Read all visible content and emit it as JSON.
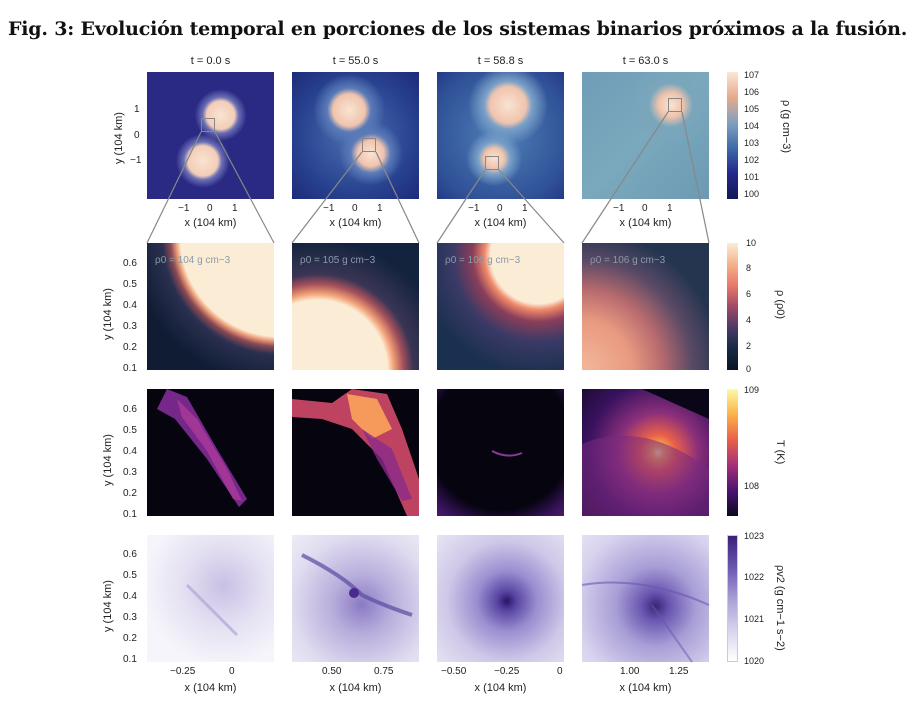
{
  "title": "Fig. 3: Evolución temporal en porciones de los sistemas binarios próximos a la fusión.",
  "columns": [
    {
      "time": "t = 0.0 s",
      "rho0": "ρ0 = 104 g cm−3"
    },
    {
      "time": "t = 55.0 s",
      "rho0": "ρ0 = 105 g cm−3"
    },
    {
      "time": "t = 58.8 s",
      "rho0": "ρ0 = 106 g cm−3"
    },
    {
      "time": "t = 63.0 s",
      "rho0": "ρ0 = 106 g cm−3"
    }
  ],
  "row1": {
    "ylabel": "y (104 km)",
    "xlabel": "x (104 km)",
    "yticks": [
      "1",
      "0",
      "−1"
    ],
    "xticks": [
      "−1",
      "0",
      "1"
    ],
    "colorbar": {
      "label": "ρ (g cm−3)",
      "ticks": [
        "107",
        "106",
        "105",
        "104",
        "103",
        "102",
        "101",
        "100"
      ]
    }
  },
  "row2": {
    "ylabel": "y (104 km)",
    "yticks": [
      "0.6",
      "0.5",
      "0.4",
      "0.3",
      "0.2",
      "0.1"
    ],
    "colorbar": {
      "label": "ρ (ρ0)",
      "ticks": [
        "10",
        "8",
        "6",
        "4",
        "2",
        "0"
      ]
    }
  },
  "row3": {
    "ylabel": "y (104 km)",
    "yticks": [
      "0.6",
      "0.5",
      "0.4",
      "0.3",
      "0.2",
      "0.1"
    ],
    "colorbar": {
      "label": "T (K)",
      "ticks": [
        "109",
        "108"
      ]
    }
  },
  "row4": {
    "ylabel": "y (104 km)",
    "yticks": [
      "0.6",
      "0.5",
      "0.4",
      "0.3",
      "0.2",
      "0.1"
    ],
    "xlabel": "x (104 km)",
    "xticks": [
      [
        "−0.25",
        "0"
      ],
      [
        "0.50",
        "0.75"
      ],
      [
        "−0.50",
        "−0.25",
        "0"
      ],
      [
        "1.00",
        "1.25"
      ]
    ],
    "colorbar": {
      "label": "ρv2 (g cm−1 s−2)",
      "ticks": [
        "1023",
        "1022",
        "1021",
        "1020"
      ]
    }
  },
  "colors": {
    "density_low": "#1b1f6e",
    "density_high": "#fbe7d4",
    "temp_low": "#05040f",
    "temp_high": "#fcfba3",
    "flux_low": "#ffffff",
    "flux_high": "#3b1e7a"
  }
}
